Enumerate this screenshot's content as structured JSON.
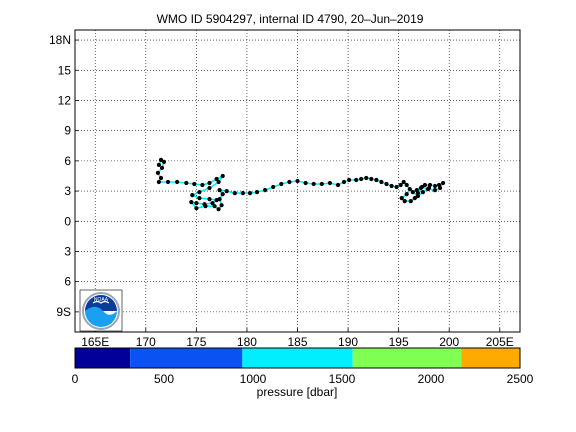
{
  "chart_data": {
    "type": "scatter",
    "title": "WMO ID 5904297, internal ID 4790, 20–Jun–2019",
    "x_range": [
      163,
      207
    ],
    "y_range": [
      -11,
      19
    ],
    "x_ticks": [
      {
        "v": 165,
        "label": "165E"
      },
      {
        "v": 170,
        "label": "170"
      },
      {
        "v": 175,
        "label": "175"
      },
      {
        "v": 180,
        "label": "180"
      },
      {
        "v": 185,
        "label": "185"
      },
      {
        "v": 190,
        "label": "190"
      },
      {
        "v": 195,
        "label": "195"
      },
      {
        "v": 200,
        "label": "200"
      },
      {
        "v": 205,
        "label": "205E"
      }
    ],
    "y_ticks": [
      {
        "v": 18,
        "label": "18N"
      },
      {
        "v": 15,
        "label": "15"
      },
      {
        "v": 12,
        "label": "12"
      },
      {
        "v": 9,
        "label": "9"
      },
      {
        "v": 6,
        "label": "6"
      },
      {
        "v": 3,
        "label": "3"
      },
      {
        "v": 0,
        "label": "0"
      },
      {
        "v": -3,
        "label": "3"
      },
      {
        "v": -6,
        "label": "6"
      },
      {
        "v": -9,
        "label": "9S"
      }
    ],
    "grid": true,
    "track": [
      [
        171.3,
        5.6
      ],
      [
        171.5,
        6.1
      ],
      [
        171.8,
        5.9
      ],
      [
        171.6,
        5.3
      ],
      [
        171.2,
        4.8
      ],
      [
        171.5,
        4.3
      ],
      [
        171.3,
        3.9
      ],
      [
        172.2,
        3.9
      ],
      [
        173.1,
        3.9
      ],
      [
        174.0,
        3.8
      ],
      [
        174.8,
        3.7
      ],
      [
        175.6,
        3.6
      ],
      [
        176.3,
        3.8
      ],
      [
        177.0,
        4.2
      ],
      [
        177.6,
        4.5
      ],
      [
        177.2,
        3.9
      ],
      [
        176.3,
        3.3
      ],
      [
        175.3,
        2.9
      ],
      [
        174.6,
        2.6
      ],
      [
        175.3,
        2.3
      ],
      [
        176.3,
        2.2
      ],
      [
        177.0,
        2.1
      ],
      [
        176.6,
        1.8
      ],
      [
        175.8,
        1.7
      ],
      [
        175.0,
        1.8
      ],
      [
        174.5,
        1.9
      ],
      [
        175.0,
        1.3
      ],
      [
        175.9,
        1.5
      ],
      [
        176.8,
        1.5
      ],
      [
        177.2,
        1.2
      ],
      [
        177.5,
        1.6
      ],
      [
        177.3,
        2.2
      ],
      [
        177.6,
        2.7
      ],
      [
        177.3,
        3.1
      ],
      [
        178.0,
        3.0
      ],
      [
        178.8,
        2.8
      ],
      [
        179.6,
        2.8
      ],
      [
        180.3,
        2.8
      ],
      [
        181.0,
        2.9
      ],
      [
        181.8,
        3.1
      ],
      [
        182.6,
        3.4
      ],
      [
        183.4,
        3.7
      ],
      [
        184.2,
        3.9
      ],
      [
        185.0,
        4.0
      ],
      [
        185.8,
        3.8
      ],
      [
        186.6,
        3.7
      ],
      [
        187.4,
        3.7
      ],
      [
        188.2,
        3.8
      ],
      [
        189.0,
        3.6
      ],
      [
        189.6,
        3.9
      ],
      [
        190.1,
        4.1
      ],
      [
        190.8,
        4.1
      ],
      [
        191.3,
        4.2
      ],
      [
        191.8,
        4.3
      ],
      [
        192.3,
        4.2
      ],
      [
        192.8,
        4.1
      ],
      [
        193.3,
        3.9
      ],
      [
        193.8,
        3.7
      ],
      [
        194.3,
        3.5
      ],
      [
        194.8,
        3.4
      ],
      [
        195.2,
        3.6
      ],
      [
        195.5,
        3.9
      ],
      [
        195.8,
        3.6
      ],
      [
        196.1,
        3.2
      ],
      [
        195.8,
        2.7
      ],
      [
        195.3,
        2.3
      ],
      [
        195.6,
        2.0
      ],
      [
        196.2,
        2.0
      ],
      [
        196.6,
        2.3
      ],
      [
        196.9,
        2.8
      ],
      [
        197.2,
        3.3
      ],
      [
        197.6,
        3.6
      ],
      [
        198.1,
        3.6
      ],
      [
        198.6,
        3.5
      ],
      [
        199.0,
        3.6
      ],
      [
        199.4,
        3.8
      ],
      [
        199.1,
        3.3
      ],
      [
        198.6,
        3.1
      ],
      [
        197.9,
        3.2
      ],
      [
        197.3,
        3.4
      ],
      [
        196.8,
        3.1
      ],
      [
        196.4,
        2.9
      ],
      [
        196.9,
        2.5
      ],
      [
        197.4,
        2.9
      ],
      [
        198.0,
        3.3
      ]
    ],
    "colorbar": {
      "label": "pressure [dbar]",
      "ticks": [
        "0",
        "500",
        "1000",
        "1500",
        "2000",
        "2500"
      ],
      "segments": [
        {
          "color": "#000099",
          "from": 0,
          "to": 310
        },
        {
          "color": "#0a52f4",
          "from": 310,
          "to": 940
        },
        {
          "color": "#00eeff",
          "from": 940,
          "to": 1560
        },
        {
          "color": "#80ff55",
          "from": 1560,
          "to": 2170
        },
        {
          "color": "#ffaa00",
          "from": 2170,
          "to": 2500
        }
      ]
    }
  },
  "logo": {
    "text": "NOAA",
    "ring": "#9aa6b8",
    "sky": "#0a3c9a",
    "wave": "#1aa0f0"
  }
}
